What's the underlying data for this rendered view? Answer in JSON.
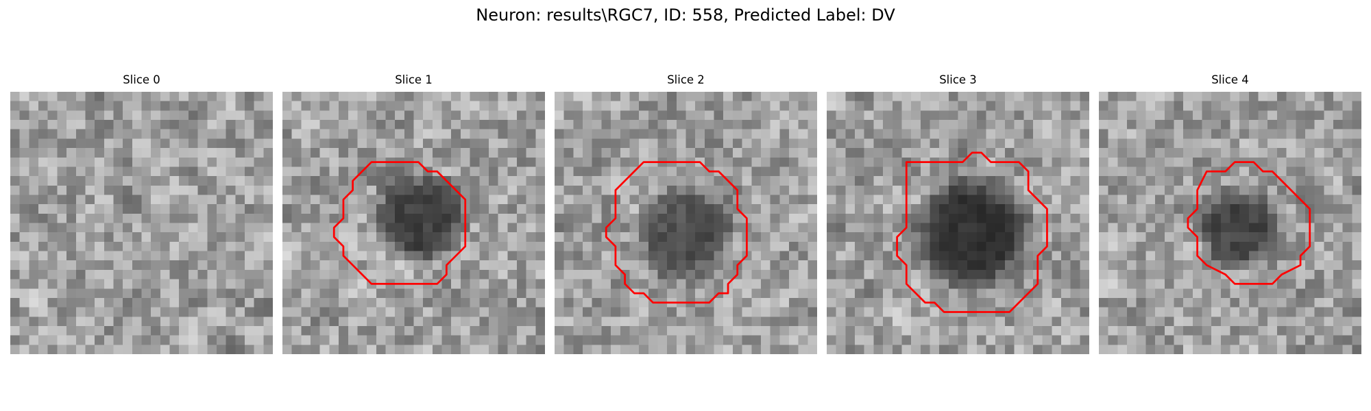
{
  "figure": {
    "title": "Neuron: results\\RGC7, ID: 558, Predicted Label: DV"
  },
  "slices": [
    {
      "title": "Slice 0",
      "mask": null,
      "dark_blob": null
    },
    {
      "title": "Slice 1",
      "mask": [
        [
          9.5,
          7.5
        ],
        [
          14.5,
          7.5
        ],
        [
          15.5,
          8.5
        ],
        [
          16.5,
          8.5
        ],
        [
          18.5,
          10.5
        ],
        [
          19.5,
          11.5
        ],
        [
          19.5,
          16.5
        ],
        [
          17.5,
          18.5
        ],
        [
          17.5,
          19.5
        ],
        [
          16.5,
          20.5
        ],
        [
          9.5,
          20.5
        ],
        [
          8.5,
          19.5
        ],
        [
          7.5,
          18.5
        ],
        [
          6.5,
          17.5
        ],
        [
          6.5,
          16.5
        ],
        [
          5.5,
          15.5
        ],
        [
          5.5,
          14.5
        ],
        [
          6.5,
          13.5
        ],
        [
          6.5,
          11.5
        ],
        [
          7.5,
          10.5
        ],
        [
          7.5,
          9.5
        ],
        [
          8.5,
          8.5
        ]
      ],
      "dark_blob": {
        "cx": 14.8,
        "cy": 13.5,
        "r": 5.5,
        "depth": 0.62
      }
    },
    {
      "title": "Slice 2",
      "mask": [
        [
          9.5,
          7.5
        ],
        [
          15.5,
          7.5
        ],
        [
          16.5,
          8.5
        ],
        [
          17.5,
          8.5
        ],
        [
          19.5,
          10.5
        ],
        [
          19.5,
          12.5
        ],
        [
          20.5,
          13.5
        ],
        [
          20.5,
          17.5
        ],
        [
          19.5,
          18.5
        ],
        [
          19.5,
          19.5
        ],
        [
          18.5,
          20.5
        ],
        [
          18.5,
          21.5
        ],
        [
          17.5,
          21.5
        ],
        [
          16.5,
          22.5
        ],
        [
          10.5,
          22.5
        ],
        [
          9.5,
          21.5
        ],
        [
          8.5,
          21.5
        ],
        [
          7.5,
          20.5
        ],
        [
          7.5,
          19.5
        ],
        [
          6.5,
          18.5
        ],
        [
          6.5,
          16.5
        ],
        [
          5.5,
          15.5
        ],
        [
          5.5,
          14.5
        ],
        [
          6.5,
          13.5
        ],
        [
          6.5,
          10.5
        ],
        [
          7.5,
          9.5
        ],
        [
          8.5,
          8.5
        ]
      ],
      "dark_blob": {
        "cx": 14,
        "cy": 15,
        "r": 6,
        "depth": 0.5
      }
    },
    {
      "title": "Slice 3",
      "mask": [
        [
          8.5,
          7.5
        ],
        [
          14.5,
          7.5
        ],
        [
          15.5,
          6.5
        ],
        [
          16.5,
          6.5
        ],
        [
          17.5,
          7.5
        ],
        [
          20.5,
          7.5
        ],
        [
          21.5,
          8.5
        ],
        [
          21.5,
          10.5
        ],
        [
          23.5,
          12.5
        ],
        [
          23.5,
          16.5
        ],
        [
          22.5,
          17.5
        ],
        [
          22.5,
          20.5
        ],
        [
          21.5,
          21.5
        ],
        [
          20.5,
          22.5
        ],
        [
          19.5,
          23.5
        ],
        [
          12.5,
          23.5
        ],
        [
          11.5,
          22.5
        ],
        [
          10.5,
          22.5
        ],
        [
          8.5,
          20.5
        ],
        [
          8.5,
          18.5
        ],
        [
          7.5,
          17.5
        ],
        [
          7.5,
          15.5
        ],
        [
          8.5,
          14.5
        ],
        [
          8.5,
          11.5
        ]
      ],
      "dark_blob": {
        "cx": 15.5,
        "cy": 15,
        "r": 7,
        "depth": 0.72
      }
    },
    {
      "title": "Slice 4",
      "mask": [
        [
          11.5,
          8.5
        ],
        [
          13.5,
          8.5
        ],
        [
          14.5,
          7.5
        ],
        [
          16.5,
          7.5
        ],
        [
          17.5,
          8.5
        ],
        [
          18.5,
          8.5
        ],
        [
          22.5,
          12.5
        ],
        [
          22.5,
          16.5
        ],
        [
          21.5,
          17.5
        ],
        [
          21.5,
          18.5
        ],
        [
          19.5,
          19.5
        ],
        [
          18.5,
          20.5
        ],
        [
          14.5,
          20.5
        ],
        [
          13.5,
          19.5
        ],
        [
          11.5,
          18.5
        ],
        [
          10.5,
          17.5
        ],
        [
          10.5,
          15.5
        ],
        [
          9.5,
          14.5
        ],
        [
          9.5,
          13.5
        ],
        [
          10.5,
          12.5
        ],
        [
          10.5,
          10.5
        ]
      ],
      "dark_blob": {
        "cx": 15,
        "cy": 14.5,
        "r": 5,
        "depth": 0.6
      }
    }
  ],
  "style": {
    "contour_color": "#ff0000",
    "colormap": "gray"
  }
}
